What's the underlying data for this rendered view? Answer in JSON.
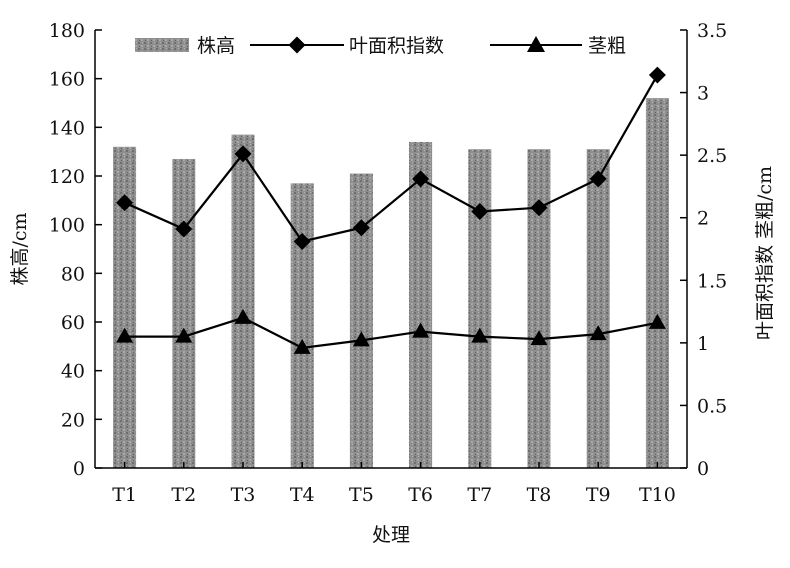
{
  "chart_data": {
    "type": "bar",
    "categories": [
      "T1",
      "T2",
      "T3",
      "T4",
      "T5",
      "T6",
      "T7",
      "T8",
      "T9",
      "T10"
    ],
    "xlabel": "处理",
    "ylabel_left": "株高/cm",
    "ylabel_right": "叶面积指数 茎粗/cm",
    "ylim_left": [
      0,
      180
    ],
    "ylim_right": [
      0,
      3.5
    ],
    "yticks_left": [
      "0",
      "20",
      "40",
      "60",
      "80",
      "100",
      "120",
      "140",
      "160",
      "180"
    ],
    "yticks_right": [
      "0",
      "0.5",
      "1",
      "1.5",
      "2",
      "2.5",
      "3",
      "3.5"
    ],
    "grid": false,
    "legend_position": "top",
    "series": [
      {
        "name": "株高",
        "type": "bar",
        "axis": "left",
        "values": [
          132,
          127,
          137,
          117,
          121,
          134,
          131,
          131,
          131,
          152
        ],
        "color": "#8c8c8c",
        "marker": "none"
      },
      {
        "name": "叶面积指数",
        "type": "line",
        "axis": "right",
        "values": [
          2.12,
          1.91,
          2.51,
          1.81,
          1.92,
          2.31,
          2.05,
          2.08,
          2.31,
          3.14
        ],
        "color": "#000000",
        "marker": "diamond"
      },
      {
        "name": "茎粗",
        "type": "line",
        "axis": "right",
        "values": [
          1.05,
          1.05,
          1.2,
          0.96,
          1.02,
          1.09,
          1.05,
          1.03,
          1.07,
          1.16
        ],
        "color": "#000000",
        "marker": "triangle"
      }
    ]
  }
}
